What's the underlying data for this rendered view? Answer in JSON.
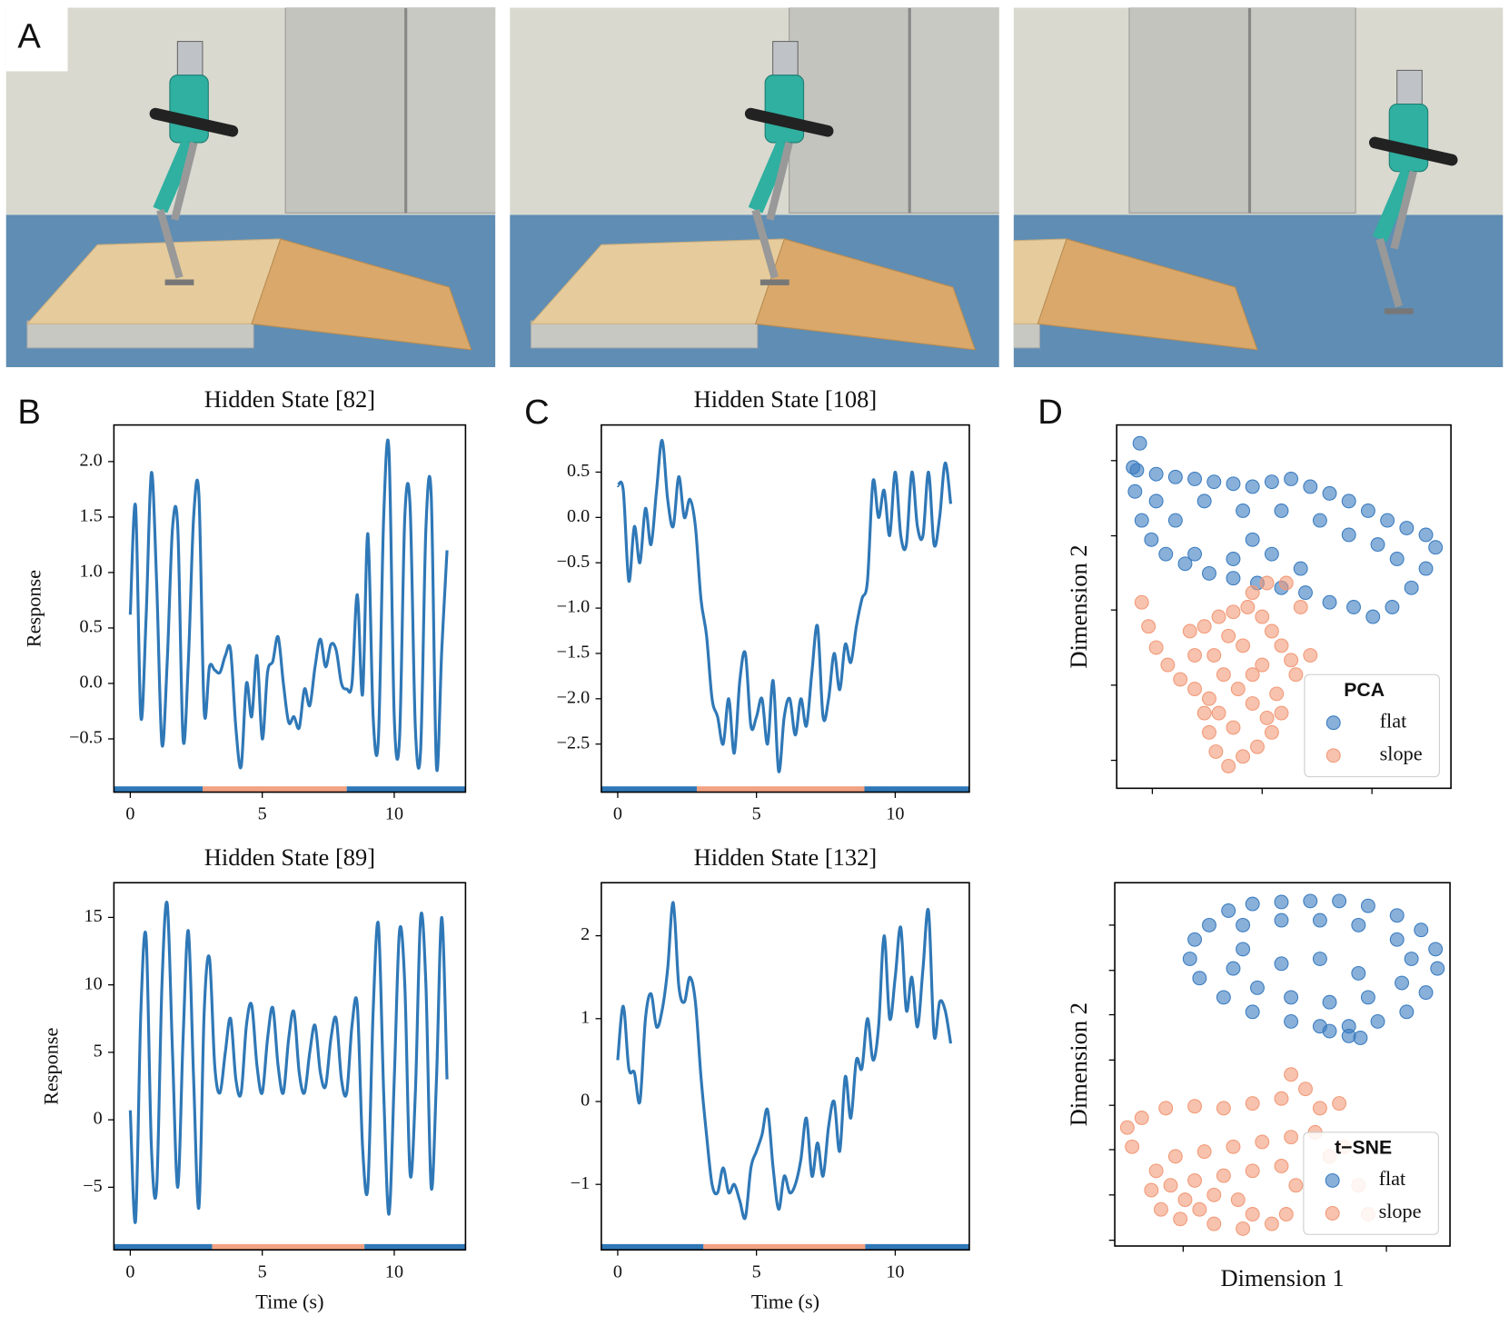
{
  "panel_labels": [
    "A",
    "B",
    "C",
    "D"
  ],
  "chart_data": [
    {
      "type": "line",
      "title": "Hidden State [82]",
      "ylabel": "Response",
      "color": "#2f78b7",
      "x": [
        0,
        0.2,
        0.4,
        0.6,
        0.8,
        1,
        1.2,
        1.4,
        1.6,
        1.8,
        2,
        2.2,
        2.4,
        2.6,
        2.8,
        3,
        3.2,
        3.4,
        3.6,
        3.8,
        4,
        4.2,
        4.4,
        4.6,
        4.8,
        5,
        5.2,
        5.4,
        5.6,
        5.8,
        6,
        6.2,
        6.4,
        6.6,
        6.8,
        7,
        7.2,
        7.4,
        7.6,
        7.8,
        8,
        8.2,
        8.4,
        8.6,
        8.8,
        9,
        9.2,
        9.4,
        9.6,
        9.8,
        10,
        10.2,
        10.4,
        10.6,
        10.8,
        11,
        11.2,
        11.4,
        11.6,
        11.8,
        12
      ],
      "values": [
        0.62,
        1.6,
        -0.3,
        0.6,
        1.9,
        0.9,
        -0.55,
        0.2,
        1.4,
        1.4,
        -0.5,
        0.2,
        1.5,
        1.7,
        -0.25,
        0.15,
        0.12,
        0.1,
        0.25,
        0.3,
        -0.4,
        -0.75,
        0,
        -0.3,
        0.25,
        -0.5,
        0.1,
        0.2,
        0.42,
        0,
        -0.35,
        -0.3,
        -0.4,
        -0.05,
        -0.2,
        0.15,
        0.4,
        0.15,
        0.35,
        0.3,
        0,
        -0.05,
        0,
        0.8,
        -0.1,
        1.35,
        -0.3,
        -0.5,
        1.5,
        2.1,
        -0.3,
        -0.5,
        1.5,
        1.6,
        -0.4,
        -0.6,
        1.4,
        1.7,
        -0.75,
        0.3,
        1.2
      ],
      "xlim": [
        -0.62,
        12.7
      ],
      "xticks": [
        0,
        5,
        10
      ],
      "ylim": [
        -0.98,
        2.33
      ],
      "yticks": [
        {
          "value": -0.5,
          "label": "−0.5"
        },
        {
          "value": 0,
          "label": "0.0"
        },
        0.5,
        {
          "value": 1,
          "label": "1.0"
        },
        1.5,
        {
          "value": 2,
          "label": "2.0"
        }
      ],
      "bands": {
        "edges": [
          2.74,
          8.2
        ],
        "colors": [
          "#2f78b7",
          "#f2a283",
          "#2f78b7"
        ]
      }
    },
    {
      "type": "line",
      "title": "Hidden State [89]",
      "ylabel": "Response",
      "xlabel": "Time (s)",
      "color": "#2f78b7",
      "x": [
        0,
        0.2,
        0.4,
        0.6,
        0.8,
        1,
        1.2,
        1.4,
        1.6,
        1.8,
        2,
        2.2,
        2.4,
        2.6,
        2.8,
        3,
        3.2,
        3.4,
        3.6,
        3.8,
        4,
        4.2,
        4.4,
        4.6,
        4.8,
        5,
        5.2,
        5.4,
        5.6,
        5.8,
        6,
        6.2,
        6.4,
        6.6,
        6.8,
        7,
        7.2,
        7.4,
        7.6,
        7.8,
        8,
        8.2,
        8.4,
        8.6,
        8.8,
        9,
        9.2,
        9.4,
        9.6,
        9.8,
        10,
        10.2,
        10.4,
        10.6,
        10.8,
        11,
        11.2,
        11.4,
        11.6,
        11.8,
        12
      ],
      "values": [
        0.7,
        -7.5,
        8,
        13.5,
        -2,
        -5,
        10,
        16,
        5,
        -5,
        6,
        14,
        3,
        -6.5,
        8,
        12,
        4,
        2,
        5,
        7.5,
        3,
        2,
        7,
        8.5,
        4,
        2,
        6,
        8.3,
        4,
        2,
        6,
        8,
        3.5,
        2,
        5,
        7,
        3.5,
        2.5,
        6,
        7.5,
        3,
        2,
        7,
        8.5,
        -2,
        -5,
        8,
        14.5,
        2,
        -7,
        3,
        14,
        10,
        -4,
        2,
        15,
        10,
        -5,
        3,
        15,
        3
      ],
      "xlim": [
        -0.62,
        12.7
      ],
      "xticks": [
        0,
        5,
        10
      ],
      "ylim": [
        -9.64,
        17.57
      ],
      "yticks": [
        {
          "value": -5,
          "label": "−5"
        },
        0,
        5,
        10,
        15
      ],
      "bands": {
        "edges": [
          3.1,
          8.87
        ],
        "colors": [
          "#2f78b7",
          "#f2a283",
          "#2f78b7"
        ]
      }
    },
    {
      "type": "line",
      "title": "Hidden State [108]",
      "color": "#2f78b7",
      "x": [
        0,
        0.2,
        0.4,
        0.6,
        0.8,
        1,
        1.2,
        1.4,
        1.6,
        1.8,
        2,
        2.2,
        2.4,
        2.6,
        2.8,
        3,
        3.2,
        3.4,
        3.6,
        3.8,
        4,
        4.2,
        4.4,
        4.6,
        4.8,
        5,
        5.2,
        5.4,
        5.6,
        5.8,
        6,
        6.2,
        6.4,
        6.6,
        6.8,
        7,
        7.2,
        7.4,
        7.6,
        7.8,
        8,
        8.2,
        8.4,
        8.6,
        8.8,
        9,
        9.2,
        9.4,
        9.6,
        9.8,
        10,
        10.2,
        10.4,
        10.6,
        10.8,
        11,
        11.2,
        11.4,
        11.6,
        11.8,
        12
      ],
      "values": [
        0.35,
        0.3,
        -0.7,
        -0.1,
        -0.5,
        0.1,
        -0.3,
        0.3,
        0.85,
        0.2,
        -0.1,
        0.45,
        0,
        0.2,
        -0.1,
        -0.9,
        -1.3,
        -2,
        -2.2,
        -2.5,
        -2,
        -2.6,
        -1.8,
        -1.5,
        -2.3,
        -2.2,
        -2,
        -2.5,
        -1.8,
        -2.8,
        -2.2,
        -2,
        -2.4,
        -2,
        -2.3,
        -1.7,
        -1.2,
        -2.2,
        -2,
        -1.5,
        -1.9,
        -1.4,
        -1.6,
        -1.2,
        -0.9,
        -0.7,
        0.4,
        0,
        0.3,
        -0.2,
        0.5,
        -0.2,
        -0.3,
        0.5,
        -0.1,
        -0.2,
        0.5,
        -0.3,
        0,
        0.6,
        0.15
      ],
      "xlim": [
        -0.59,
        12.67
      ],
      "xticks": [
        0,
        5,
        10
      ],
      "ylim": [
        -3.03,
        1.02
      ],
      "yticks": [
        {
          "value": -2.5,
          "label": "−2.5"
        },
        {
          "value": -2,
          "label": "−2.0"
        },
        {
          "value": -1.5,
          "label": "−1.5"
        },
        {
          "value": -1,
          "label": "−1.0"
        },
        {
          "value": -0.5,
          "label": "−0.5"
        },
        {
          "value": 0,
          "label": "0.0"
        },
        0.5
      ],
      "bands": {
        "edges": [
          2.85,
          8.89
        ],
        "colors": [
          "#2f78b7",
          "#f2a283",
          "#2f78b7"
        ]
      }
    },
    {
      "type": "line",
      "title": "Hidden State [132]",
      "xlabel": "Time (s)",
      "color": "#2f78b7",
      "x": [
        0,
        0.2,
        0.4,
        0.6,
        0.8,
        1,
        1.2,
        1.4,
        1.6,
        1.8,
        2,
        2.2,
        2.4,
        2.6,
        2.8,
        3,
        3.2,
        3.4,
        3.6,
        3.8,
        4,
        4.2,
        4.4,
        4.6,
        4.8,
        5,
        5.2,
        5.4,
        5.6,
        5.8,
        6,
        6.2,
        6.4,
        6.6,
        6.8,
        7,
        7.2,
        7.4,
        7.6,
        7.8,
        8,
        8.2,
        8.4,
        8.6,
        8.8,
        9,
        9.2,
        9.4,
        9.6,
        9.8,
        10,
        10.2,
        10.4,
        10.6,
        10.8,
        11,
        11.2,
        11.4,
        11.6,
        11.8,
        12
      ],
      "values": [
        0.5,
        1.15,
        0.4,
        0.35,
        0,
        1,
        1.3,
        0.9,
        1.1,
        1.6,
        2.4,
        1.4,
        1.2,
        1.5,
        1.2,
        0.3,
        -0.4,
        -1,
        -1.1,
        -0.8,
        -1.1,
        -1,
        -1.2,
        -1.4,
        -0.8,
        -0.6,
        -0.4,
        -0.1,
        -0.8,
        -1.3,
        -0.9,
        -1.1,
        -1,
        -0.7,
        -0.2,
        -0.9,
        -0.5,
        -0.9,
        -0.3,
        0,
        -0.6,
        0.3,
        -0.2,
        0.5,
        0.4,
        1,
        0.5,
        0.9,
        2,
        1,
        1.5,
        2.1,
        1.1,
        1.5,
        0.9,
        1.6,
        2.3,
        0.8,
        1.2,
        1.1,
        0.7
      ],
      "xlim": [
        -0.59,
        12.67
      ],
      "xticks": [
        0,
        5,
        10
      ],
      "ylim": [
        -1.79,
        2.64
      ],
      "yticks": [
        {
          "value": -1,
          "label": "−1"
        },
        0,
        1,
        2
      ],
      "bands": {
        "edges": [
          3.09,
          8.92
        ],
        "colors": [
          "#2f78b7",
          "#f2a283",
          "#2f78b7"
        ]
      }
    },
    {
      "type": "scatter",
      "ylabel": "Dimension 2",
      "xlim": [
        0,
        347
      ],
      "xticks": [
        37,
        151,
        265
      ],
      "ylim": [
        0,
        377
      ],
      "yticks": [
        29,
        107,
        185,
        262,
        340
      ],
      "legend": {
        "title": "PCA",
        "corner": "lower right"
      },
      "series": [
        {
          "name": "flat",
          "color": "#3a7cc0",
          "x": [
            21,
            41,
            61,
            81,
            101,
            121,
            141,
            161,
            181,
            201,
            221,
            241,
            261,
            281,
            301,
            321,
            331,
            24,
            17,
            19,
            91,
            131,
            171,
            211,
            241,
            271,
            291,
            26,
            36,
            51,
            71,
            96,
            121,
            146,
            171,
            196,
            221,
            246,
            266,
            286,
            306,
            321,
            141,
            161,
            191,
            121,
            81,
            41,
            61
          ],
          "y": [
            330,
            326,
            323,
            321,
            318,
            316,
            313,
            318,
            321,
            313,
            306,
            298,
            288,
            278,
            270,
            263,
            250,
            358,
            333,
            308,
            298,
            288,
            288,
            278,
            263,
            253,
            238,
            278,
            258,
            243,
            233,
            223,
            218,
            213,
            208,
            203,
            193,
            188,
            178,
            188,
            208,
            228,
            258,
            243,
            228,
            238,
            243,
            298,
            278
          ]
        },
        {
          "name": "slope",
          "color": "#f29a78",
          "x": [
            26,
            33,
            41,
            53,
            66,
            81,
            76,
            91,
            106,
            121,
            136,
            151,
            161,
            171,
            181,
            201,
            191,
            176,
            156,
            141,
            101,
            111,
            126,
            141,
            156,
            161,
            146,
            131,
            116,
            103,
            96,
            91,
            106,
            121,
            141,
            151,
            166,
            81,
            96,
            131,
            116,
            186,
            171
          ],
          "y": [
            193,
            168,
            146,
            128,
            113,
            103,
            163,
            168,
            178,
            183,
            188,
            178,
            163,
            148,
            133,
            138,
            188,
            213,
            213,
            203,
            138,
            118,
            103,
            88,
            73,
            58,
            43,
            33,
            23,
            38,
            58,
            78,
            78,
            63,
            118,
            128,
            98,
            138,
            93,
            148,
            158,
            118,
            78
          ]
        }
      ]
    },
    {
      "type": "scatter",
      "ylabel": "Dimension 2",
      "xlabel": "Dimension 1",
      "xlim": [
        0,
        348
      ],
      "xticks": [
        71,
        282
      ],
      "ylim": [
        0,
        377
      ],
      "yticks": [
        6,
        53,
        100,
        146,
        193,
        240,
        286,
        333
      ],
      "legend": {
        "title": "t−SNE",
        "corner": "lower right"
      },
      "series": [
        {
          "name": "flat",
          "color": "#3a7cc0",
          "x": [
            118,
            143,
            173,
            203,
            233,
            263,
            293,
            318,
            333,
            335,
            323,
            303,
            273,
            243,
            213,
            183,
            143,
            113,
            88,
            78,
            83,
            98,
            133,
            173,
            213,
            253,
            293,
            308,
            298,
            263,
            223,
            183,
            148,
            123,
            133,
            173,
            213,
            253,
            223,
            243,
            255
          ],
          "y": [
            348,
            355,
            357,
            358,
            358,
            353,
            343,
            328,
            308,
            288,
            263,
            243,
            233,
            228,
            228,
            233,
            243,
            258,
            278,
            298,
            318,
            333,
            333,
            338,
            338,
            333,
            318,
            298,
            273,
            258,
            253,
            258,
            268,
            288,
            308,
            293,
            298,
            283,
            223,
            218,
            216
          ]
        },
        {
          "name": "slope",
          "color": "#f29a78",
          "x": [
            18,
            13,
            28,
            53,
            83,
            113,
            143,
            173,
            183,
            198,
            213,
            233,
            208,
            183,
            153,
            123,
            93,
            63,
            43,
            38,
            48,
            68,
            88,
            103,
            83,
            113,
            143,
            173,
            188,
            178,
            163,
            143,
            128,
            133,
            103,
            73,
            58,
            223,
            238,
            253,
            263
          ],
          "y": [
            103,
            123,
            133,
            143,
            145,
            143,
            148,
            153,
            178,
            163,
            143,
            148,
            118,
            113,
            108,
            103,
            98,
            93,
            78,
            58,
            38,
            28,
            38,
            53,
            68,
            73,
            78,
            83,
            63,
            33,
            23,
            33,
            48,
            18,
            23,
            48,
            63,
            93,
            103,
            63,
            33
          ]
        }
      ]
    }
  ]
}
